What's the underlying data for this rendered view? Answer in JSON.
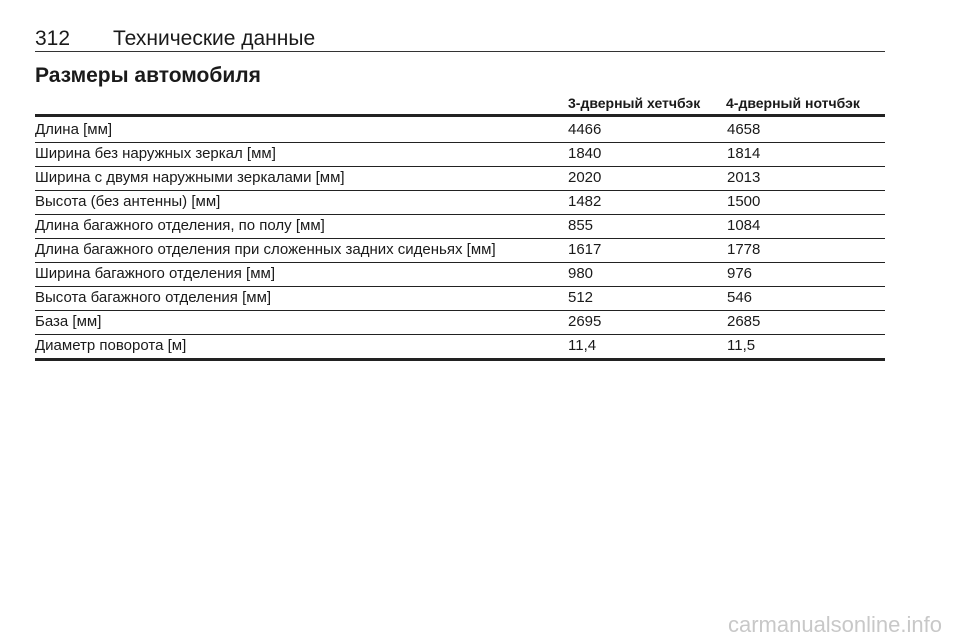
{
  "header": {
    "page_number": "312",
    "title": "Технические данные"
  },
  "section_title": "Размеры автомобиля",
  "table": {
    "columns": [
      "",
      "3-дверный хетчбэк",
      "4-дверный нотчбэк"
    ],
    "rows": [
      [
        "Длина [мм]",
        "4466",
        "4658"
      ],
      [
        "Ширина без наружных зеркал [мм]",
        "1840",
        "1814"
      ],
      [
        "Ширина с двумя наружными зеркалами [мм]",
        "2020",
        "2013"
      ],
      [
        "Высота (без антенны) [мм]",
        "1482",
        "1500"
      ],
      [
        "Длина багажного отделения, по полу [мм]",
        "855",
        "1084"
      ],
      [
        "Длина багажного отделения при сложенных задних сиденьях [мм]",
        "1617",
        "1778"
      ],
      [
        "Ширина багажного отделения [мм]",
        "980",
        "976"
      ],
      [
        "Высота багажного отделения [мм]",
        "512",
        "546"
      ],
      [
        "База [мм]",
        "2695",
        "2685"
      ],
      [
        "Диаметр поворота [м]",
        "11,4",
        "11,5"
      ]
    ]
  },
  "watermark": "carmanualsonline.info"
}
